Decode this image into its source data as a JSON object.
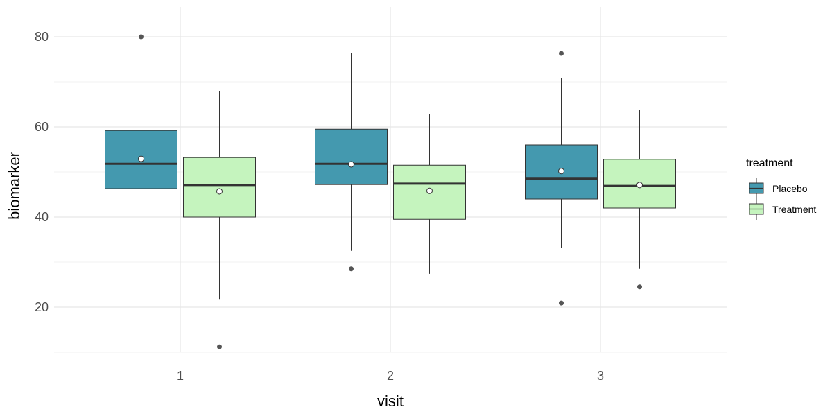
{
  "chart_data": {
    "type": "boxplot",
    "title": "",
    "xlabel": "visit",
    "ylabel": "biomarker",
    "categories": [
      "1",
      "2",
      "3"
    ],
    "ylim": [
      10,
      86
    ],
    "yticks": [
      20,
      40,
      60,
      80
    ],
    "grid": true,
    "legend": {
      "title": "treatment",
      "position": "right"
    },
    "series": [
      {
        "name": "Placebo",
        "color": "#4499AF",
        "boxes": [
          {
            "whisker_low": 30.0,
            "q1": 46.3,
            "median": 51.8,
            "q3": 59.2,
            "whisker_high": 71.4,
            "mean": 52.9,
            "outliers": [
              80.0
            ]
          },
          {
            "whisker_low": 32.5,
            "q1": 47.2,
            "median": 51.8,
            "q3": 59.5,
            "whisker_high": 76.3,
            "mean": 51.7,
            "outliers": [
              28.5
            ]
          },
          {
            "whisker_low": 33.2,
            "q1": 44.0,
            "median": 48.5,
            "q3": 56.0,
            "whisker_high": 70.8,
            "mean": 50.2,
            "outliers": [
              76.3,
              20.9
            ]
          }
        ]
      },
      {
        "name": "Treatment",
        "color": "#C5F4BE",
        "boxes": [
          {
            "whisker_low": 21.8,
            "q1": 40.0,
            "median": 47.1,
            "q3": 53.2,
            "whisker_high": 68.0,
            "mean": 45.7,
            "outliers": [
              11.2
            ]
          },
          {
            "whisker_low": 27.4,
            "q1": 39.5,
            "median": 47.4,
            "q3": 51.5,
            "whisker_high": 62.9,
            "mean": 45.8,
            "outliers": []
          },
          {
            "whisker_low": 28.5,
            "q1": 42.0,
            "median": 46.9,
            "q3": 52.8,
            "whisker_high": 63.8,
            "mean": 47.1,
            "outliers": [
              24.5
            ]
          }
        ]
      }
    ]
  }
}
